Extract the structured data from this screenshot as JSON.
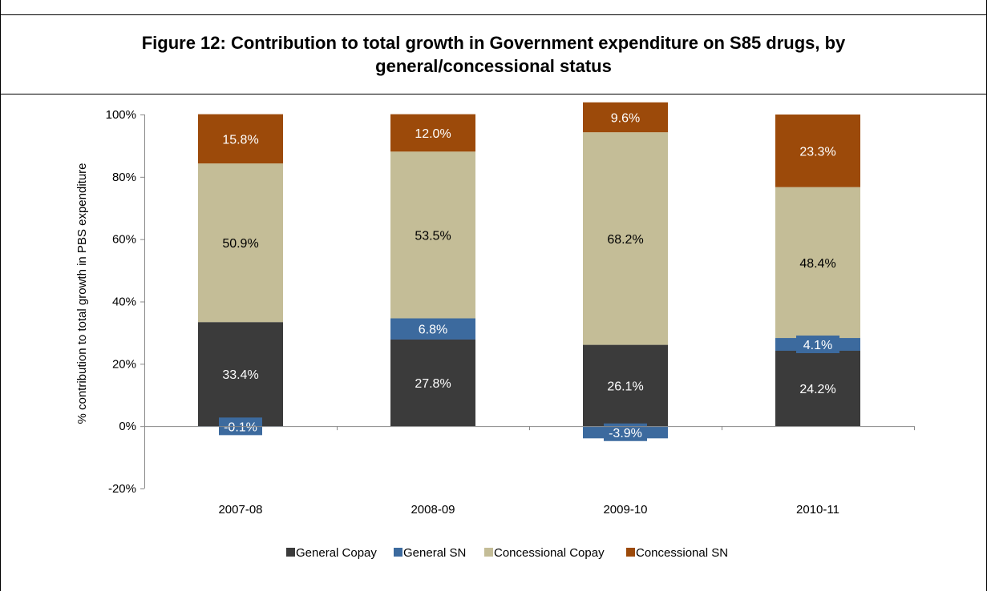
{
  "title": "Figure 12: Contribution to total growth in Government expenditure on S85 drugs, by general/concessional status",
  "chart_data": {
    "type": "bar",
    "stacked": true,
    "title": "Figure 12: Contribution to total growth in Government expenditure on S85 drugs, by general/concessional status",
    "xlabel": "",
    "ylabel": "% contribution to total growth in PBS expenditure",
    "categories": [
      "2007-08",
      "2008-09",
      "2009-10",
      "2010-11"
    ],
    "ylim": [
      -20,
      100
    ],
    "yticks": [
      "-20%",
      "0%",
      "20%",
      "40%",
      "60%",
      "80%",
      "100%"
    ],
    "legend_position": "bottom",
    "grid": false,
    "series": [
      {
        "name": "General Copay",
        "color": "#3b3b3b",
        "values": [
          33.4,
          27.8,
          26.1,
          24.2
        ],
        "labels": [
          "33.4%",
          "27.8%",
          "26.1%",
          "24.2%"
        ]
      },
      {
        "name": "General SN",
        "color": "#3c6a9e",
        "values": [
          -0.1,
          6.8,
          -3.9,
          4.1
        ],
        "labels": [
          "-0.1%",
          "6.8%",
          "-3.9%",
          "4.1%"
        ]
      },
      {
        "name": "Concessional Copay",
        "color": "#c4bd97",
        "values": [
          50.9,
          53.5,
          68.2,
          48.4
        ],
        "labels": [
          "50.9%",
          "53.5%",
          "68.2%",
          "48.4%"
        ]
      },
      {
        "name": "Concessional SN",
        "color": "#9c4a0a",
        "values": [
          15.8,
          12.0,
          9.6,
          23.3
        ],
        "labels": [
          "15.8%",
          "12.0%",
          "9.6%",
          "23.3%"
        ]
      }
    ]
  }
}
